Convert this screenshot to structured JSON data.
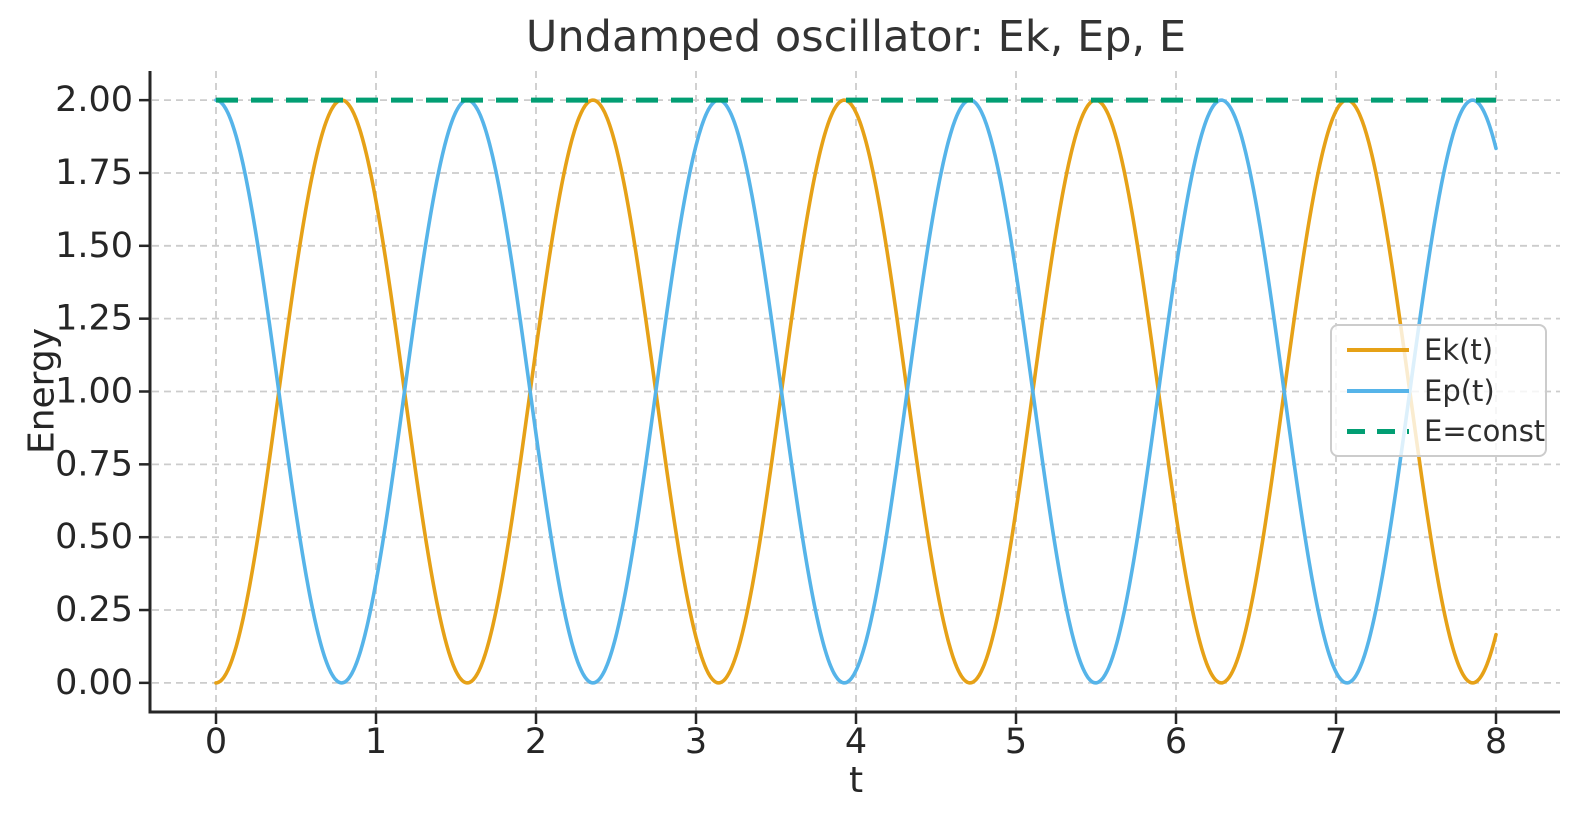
{
  "chart_data": {
    "type": "line",
    "title": "Undamped oscillator: Ek, Ep, E",
    "xlabel": "t",
    "ylabel": "Energy",
    "xlim": [
      -0.4,
      8.4
    ],
    "ylim": [
      -0.1,
      2.1
    ],
    "x_ticks": [
      0,
      1,
      2,
      3,
      4,
      5,
      6,
      7,
      8
    ],
    "x_tick_labels": [
      "0",
      "1",
      "2",
      "3",
      "4",
      "5",
      "6",
      "7",
      "8"
    ],
    "y_ticks": [
      0.0,
      0.25,
      0.5,
      0.75,
      1.0,
      1.25,
      1.5,
      1.75,
      2.0
    ],
    "y_tick_labels": [
      "0.00",
      "0.25",
      "0.50",
      "0.75",
      "1.00",
      "1.25",
      "1.50",
      "1.75",
      "2.00"
    ],
    "grid": true,
    "grid_style": "dashed",
    "legend_position": "center right",
    "background_color": "#ffffff",
    "grid_color": "#cccccc",
    "axis_color": "#262626",
    "series": [
      {
        "name": "Ek(t)",
        "color": "#E6A117",
        "style": "solid",
        "fn": "sin2",
        "formula": "Ek(t) = 2*sin^2(2t)",
        "amplitude": 2,
        "omega": 2,
        "t_range": [
          0,
          8
        ],
        "sample_x": [
          0,
          0.5,
          1.0,
          1.5,
          2.0,
          2.5,
          3.0,
          3.5,
          4.0,
          4.5,
          5.0,
          5.5,
          6.0,
          6.5,
          7.0,
          7.5,
          8.0
        ],
        "sample_y": [
          0.0,
          1.416,
          1.654,
          0.04,
          1.146,
          1.839,
          0.156,
          0.863,
          1.958,
          0.34,
          0.592,
          2.0,
          0.576,
          0.353,
          1.963,
          0.846,
          0.166
        ]
      },
      {
        "name": "Ep(t)",
        "color": "#56B4E9",
        "style": "solid",
        "fn": "cos2",
        "formula": "Ep(t) = 2*cos^2(2t)",
        "amplitude": 2,
        "omega": 2,
        "t_range": [
          0,
          8
        ],
        "sample_x": [
          0,
          0.5,
          1.0,
          1.5,
          2.0,
          2.5,
          3.0,
          3.5,
          4.0,
          4.5,
          5.0,
          5.5,
          6.0,
          6.5,
          7.0,
          7.5,
          8.0
        ],
        "sample_y": [
          2.0,
          0.584,
          0.346,
          1.96,
          0.854,
          0.161,
          1.844,
          1.137,
          0.042,
          1.66,
          1.408,
          0.0,
          1.424,
          1.647,
          0.037,
          1.154,
          1.834
        ]
      },
      {
        "name": "E=const",
        "color": "#029E73",
        "style": "dashed",
        "fn": "const",
        "formula": "E = Ek + Ep = 2",
        "value": 2.0,
        "t_range": [
          0,
          8
        ]
      }
    ]
  }
}
